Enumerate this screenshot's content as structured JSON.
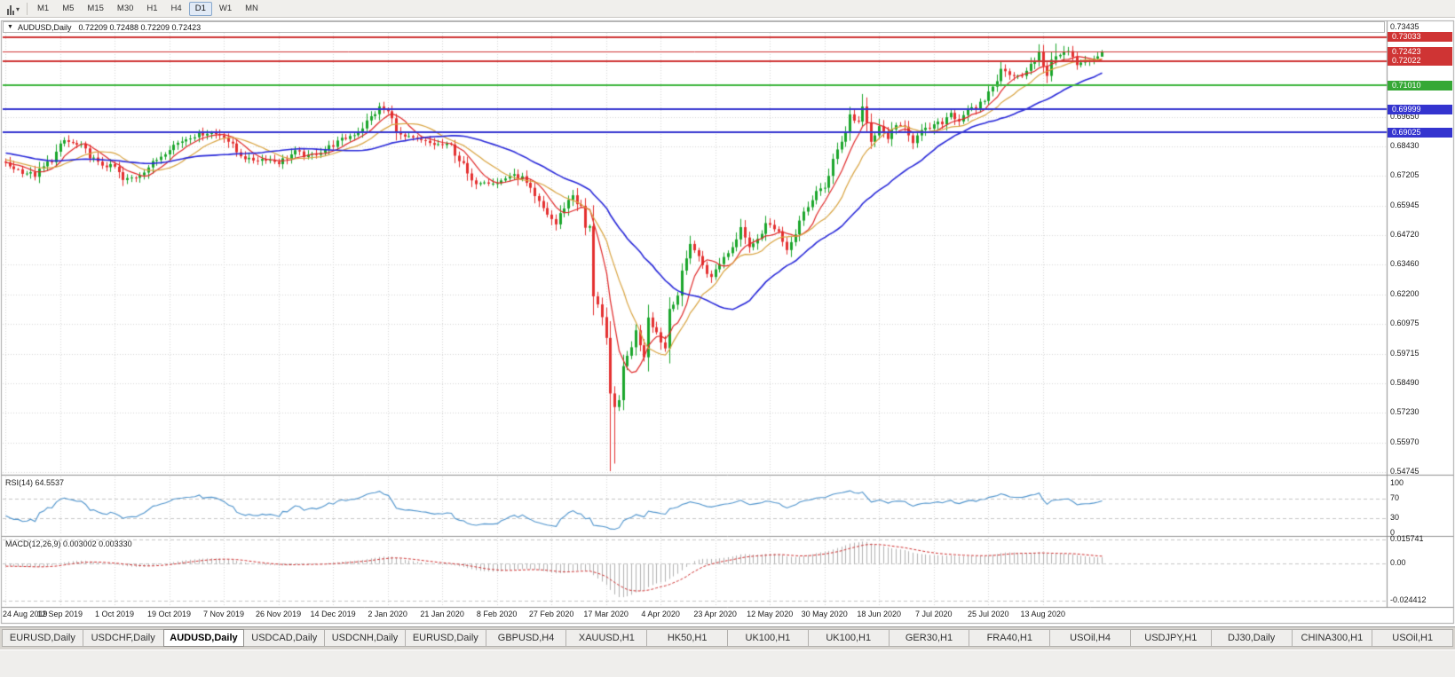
{
  "toolbar": {
    "timeframes": [
      "M1",
      "M5",
      "M15",
      "M30",
      "H1",
      "H4",
      "D1",
      "W1",
      "MN"
    ],
    "active_timeframe": "D1"
  },
  "window": {
    "symbol_title": "AUDUSD,Daily",
    "ohlc": "0.72209 0.72488 0.72209 0.72423"
  },
  "price_axis": {
    "plain_labels": [
      "0.73435",
      "0.69650",
      "0.68430",
      "0.67205",
      "0.65945",
      "0.64720",
      "0.63460",
      "0.62200",
      "0.60975",
      "0.59715",
      "0.58490",
      "0.57230",
      "0.55970",
      "0.54745"
    ],
    "boxed_labels": [
      {
        "value": "0.73033",
        "color": "#cf3434"
      },
      {
        "value": "0.72423",
        "color": "#cf3434"
      },
      {
        "value": "0.72022",
        "color": "#cf3434"
      },
      {
        "value": "0.71010",
        "color": "#35a835"
      },
      {
        "value": "0.69999",
        "color": "#3434cf"
      },
      {
        "value": "0.69025",
        "color": "#3434cf"
      }
    ]
  },
  "horizontal_lines": [
    {
      "price": 0.73033,
      "color": "#cf3434",
      "width": 2
    },
    {
      "price": 0.72423,
      "color": "#cf3434",
      "width": 1
    },
    {
      "price": 0.72022,
      "color": "#cf3434",
      "width": 2
    },
    {
      "price": 0.7101,
      "color": "#3db53d",
      "width": 2
    },
    {
      "price": 0.69999,
      "color": "#3434cf",
      "width": 2
    },
    {
      "price": 0.69025,
      "color": "#3434cf",
      "width": 2
    }
  ],
  "indicators": {
    "rsi": {
      "name": "RSI(14)",
      "value": "64.5537",
      "axis_labels": [
        "100",
        "70",
        "30",
        "0"
      ],
      "dashed_levels": [
        70,
        30
      ],
      "color": "#4f94cd"
    },
    "macd": {
      "name": "MACD(12,26,9)",
      "values": "0.003002 0.003330",
      "axis_labels": [
        "0.015741",
        "0.00",
        "-0.024412"
      ],
      "histogram_color": "#b2b2b2",
      "signal_color": "#d03030"
    }
  },
  "date_axis": [
    "24 Aug 2019",
    "12 Sep 2019",
    "1 Oct 2019",
    "19 Oct 2019",
    "7 Nov 2019",
    "26 Nov 2019",
    "14 Dec 2019",
    "2 Jan 2020",
    "21 Jan 2020",
    "8 Feb 2020",
    "27 Feb 2020",
    "17 Mar 2020",
    "4 Apr 2020",
    "23 Apr 2020",
    "12 May 2020",
    "30 May 2020",
    "18 Jun 2020",
    "7 Jul 2020",
    "25 Jul 2020",
    "13 Aug 2020"
  ],
  "tabs": {
    "items": [
      "EURUSD,Daily",
      "USDCHF,Daily",
      "AUDUSD,Daily",
      "USDCAD,Daily",
      "USDCNH,Daily",
      "EURUSD,Daily",
      "GBPUSD,H4",
      "XAUUSD,H1",
      "HK50,H1",
      "UK100,H1",
      "UK100,H1",
      "GER30,H1",
      "FRA40,H1",
      "USOil,H4",
      "USDJPY,H1",
      "DJ30,Daily",
      "CHINA300,H1",
      "USOil,H1"
    ],
    "active_index": 2
  },
  "chart_data": {
    "type": "candlestick",
    "symbol": "AUDUSD",
    "timeframe": "Daily",
    "title": "AUDUSD,Daily",
    "last_ohlc": {
      "open": 0.72209,
      "high": 0.72488,
      "low": 0.72209,
      "close": 0.72423
    },
    "price_range": [
      0.54745,
      0.73435
    ],
    "n_candles": 262,
    "candles_per_date_tick": 13,
    "grid": true,
    "candle_up": "#1ba62c",
    "candle_down": "#e43030",
    "grid_color": "#d7d7d7",
    "prehistory": {
      "n": 40,
      "start": 0.689,
      "end": 0.6768
    },
    "close_keypoints": [
      [
        0,
        0.6768
      ],
      [
        4,
        0.6738
      ],
      [
        7,
        0.6722
      ],
      [
        11,
        0.679
      ],
      [
        14,
        0.6868
      ],
      [
        18,
        0.6842
      ],
      [
        22,
        0.677
      ],
      [
        26,
        0.6756
      ],
      [
        28,
        0.67
      ],
      [
        31,
        0.6716
      ],
      [
        35,
        0.6772
      ],
      [
        39,
        0.684
      ],
      [
        44,
        0.6886
      ],
      [
        48,
        0.6902
      ],
      [
        52,
        0.689
      ],
      [
        55,
        0.682
      ],
      [
        58,
        0.6786
      ],
      [
        62,
        0.6792
      ],
      [
        65,
        0.6776
      ],
      [
        69,
        0.682
      ],
      [
        72,
        0.68
      ],
      [
        76,
        0.6832
      ],
      [
        80,
        0.687
      ],
      [
        84,
        0.6906
      ],
      [
        89,
        0.7006
      ],
      [
        91,
        0.6988
      ],
      [
        94,
        0.6886
      ],
      [
        98,
        0.687
      ],
      [
        102,
        0.6852
      ],
      [
        106,
        0.6846
      ],
      [
        109,
        0.676
      ],
      [
        111,
        0.669
      ],
      [
        114,
        0.67
      ],
      [
        117,
        0.6688
      ],
      [
        120,
        0.6722
      ],
      [
        123,
        0.671
      ],
      [
        126,
        0.6626
      ],
      [
        129,
        0.656
      ],
      [
        131,
        0.6516
      ],
      [
        133,
        0.6592
      ],
      [
        135,
        0.664
      ],
      [
        137,
        0.658
      ],
      [
        138,
        0.65
      ],
      [
        139,
        0.6486
      ],
      [
        140,
        0.6236
      ],
      [
        141,
        0.619
      ],
      [
        142,
        0.612
      ],
      [
        143,
        0.599
      ],
      [
        144,
        0.5772
      ],
      [
        145,
        0.5742
      ],
      [
        146,
        0.58
      ],
      [
        147,
        0.5892
      ],
      [
        148,
        0.596
      ],
      [
        150,
        0.6066
      ],
      [
        152,
        0.5972
      ],
      [
        153,
        0.6136
      ],
      [
        155,
        0.6062
      ],
      [
        157,
        0.5996
      ],
      [
        158,
        0.6166
      ],
      [
        160,
        0.6222
      ],
      [
        163,
        0.6442
      ],
      [
        165,
        0.6376
      ],
      [
        168,
        0.629
      ],
      [
        170,
        0.6356
      ],
      [
        173,
        0.6422
      ],
      [
        175,
        0.6512
      ],
      [
        177,
        0.6426
      ],
      [
        179,
        0.6446
      ],
      [
        181,
        0.6532
      ],
      [
        184,
        0.6472
      ],
      [
        186,
        0.6416
      ],
      [
        188,
        0.6462
      ],
      [
        190,
        0.6566
      ],
      [
        193,
        0.6652
      ],
      [
        195,
        0.6666
      ],
      [
        197,
        0.6802
      ],
      [
        199,
        0.6862
      ],
      [
        201,
        0.6972
      ],
      [
        203,
        0.6946
      ],
      [
        204,
        0.7002
      ],
      [
        205,
        0.6932
      ],
      [
        206,
        0.6862
      ],
      [
        208,
        0.6922
      ],
      [
        210,
        0.6882
      ],
      [
        212,
        0.6922
      ],
      [
        214,
        0.6936
      ],
      [
        216,
        0.6866
      ],
      [
        218,
        0.6902
      ],
      [
        220,
        0.6922
      ],
      [
        223,
        0.6946
      ],
      [
        225,
        0.6986
      ],
      [
        227,
        0.6952
      ],
      [
        229,
        0.7006
      ],
      [
        231,
        0.6992
      ],
      [
        233,
        0.7042
      ],
      [
        235,
        0.7096
      ],
      [
        237,
        0.7162
      ],
      [
        239,
        0.7152
      ],
      [
        241,
        0.7142
      ],
      [
        243,
        0.7156
      ],
      [
        245,
        0.7206
      ],
      [
        246,
        0.7232
      ],
      [
        248,
        0.7146
      ],
      [
        250,
        0.7232
      ],
      [
        253,
        0.7242
      ],
      [
        255,
        0.7186
      ],
      [
        257,
        0.7196
      ],
      [
        259,
        0.7216
      ],
      [
        261,
        0.72423
      ]
    ],
    "low_spikes": [
      {
        "index": 144,
        "low": 0.5478
      },
      {
        "index": 145,
        "low": 0.551
      }
    ],
    "high_spikes": [
      {
        "index": 204,
        "high": 0.7064
      },
      {
        "index": 250,
        "high": 0.7276
      },
      {
        "index": 253,
        "high": 0.7262
      }
    ],
    "moving_averages": [
      {
        "period": 7,
        "color": "#e02828",
        "width": 1.2
      },
      {
        "period": 14,
        "color": "#d9a441",
        "width": 1.2
      },
      {
        "period": 34,
        "color": "#2929d9",
        "width": 1.6
      }
    ]
  }
}
